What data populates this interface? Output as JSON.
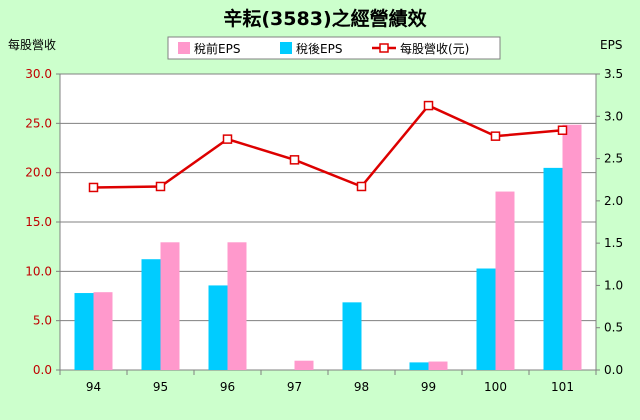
{
  "chart_data": {
    "type": "bar",
    "title": "辛耘(3583)之經營績效",
    "categories": [
      "94",
      "95",
      "96",
      "97",
      "98",
      "99",
      "100",
      "101"
    ],
    "series": [
      {
        "name": "稅前EPS",
        "kind": "bar",
        "axis": "right",
        "color": "#ff99cc",
        "values": [
          0.92,
          1.51,
          1.51,
          0.11,
          0.0,
          0.1,
          2.11,
          2.9
        ]
      },
      {
        "name": "稅後EPS",
        "kind": "bar",
        "axis": "right",
        "color": "#00ccff",
        "values": [
          0.91,
          1.31,
          1.0,
          0.0,
          0.8,
          0.09,
          1.2,
          2.39
        ]
      },
      {
        "name": "每股營收(元)",
        "kind": "line",
        "axis": "left",
        "color": "#dd0000",
        "values": [
          18.5,
          18.6,
          23.4,
          21.3,
          18.6,
          26.8,
          23.7,
          24.3
        ]
      }
    ],
    "y_left": {
      "label": "每股營收",
      "ylim": [
        0,
        30
      ],
      "ticks": [
        "0.0",
        "5.0",
        "10.0",
        "15.0",
        "20.0",
        "25.0",
        "30.0"
      ]
    },
    "y_right": {
      "label": "EPS",
      "ylim": [
        0,
        3.5
      ],
      "ticks": [
        "0.0",
        "0.5",
        "1.0",
        "1.5",
        "2.0",
        "2.5",
        "3.0",
        "3.5"
      ]
    },
    "grid": true,
    "legend_position": "top-center"
  }
}
